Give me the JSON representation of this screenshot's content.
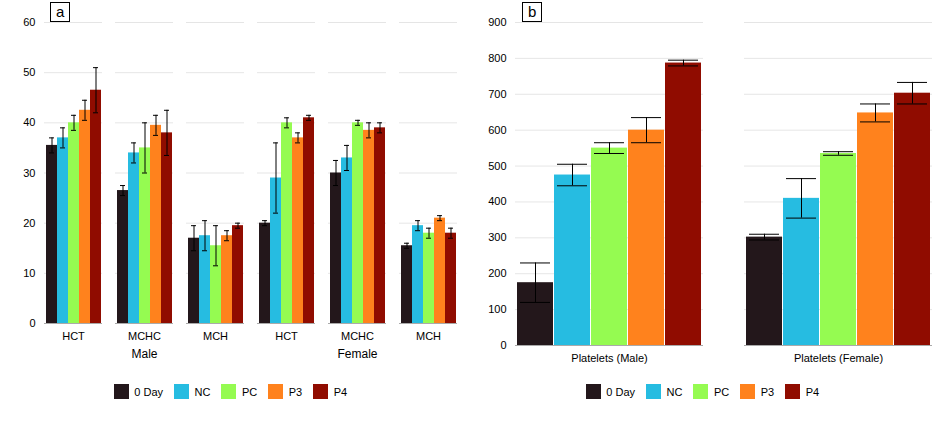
{
  "chart_data": [
    {
      "type": "bar",
      "title": "a",
      "categories": [
        "HCT",
        "MCHC",
        "MCH",
        "HCT",
        "MCHC",
        "MCH"
      ],
      "category_groups": [
        "Male",
        "Male",
        "Male",
        "Female",
        "Female",
        "Female"
      ],
      "series": [
        {
          "name": "0 Day",
          "values": [
            35.5,
            26.5,
            17.0,
            20.0,
            30.0,
            15.5
          ],
          "errors": [
            1.5,
            1.0,
            2.5,
            0.5,
            2.5,
            0.5
          ]
        },
        {
          "name": "NC",
          "values": [
            37.0,
            34.0,
            17.5,
            29.0,
            33.0,
            19.5
          ],
          "errors": [
            2.0,
            2.0,
            3.0,
            7.0,
            2.5,
            1.0
          ]
        },
        {
          "name": "PC",
          "values": [
            40.0,
            35.0,
            15.5,
            40.0,
            40.0,
            18.0
          ],
          "errors": [
            1.5,
            5.0,
            4.0,
            1.0,
            0.5,
            1.0
          ]
        },
        {
          "name": "P3",
          "values": [
            42.5,
            39.5,
            17.5,
            37.0,
            38.5,
            21.0
          ],
          "errors": [
            2.0,
            2.0,
            1.0,
            1.0,
            1.5,
            0.5
          ]
        },
        {
          "name": "P4",
          "values": [
            46.5,
            38.0,
            19.5,
            41.0,
            39.0,
            18.0
          ],
          "errors": [
            4.5,
            4.5,
            0.5,
            0.5,
            1.0,
            1.0
          ]
        }
      ],
      "ylim": [
        0,
        60
      ],
      "yticks": [
        0,
        10,
        20,
        30,
        40,
        50,
        60
      ],
      "grid": true,
      "legend": "bottom"
    },
    {
      "type": "bar",
      "title": "b",
      "categories": [
        "Platelets (Male)",
        "Platelets (Female)"
      ],
      "series": [
        {
          "name": "0 Day",
          "values": [
            175,
            302
          ],
          "errors": [
            55,
            8
          ]
        },
        {
          "name": "NC",
          "values": [
            475,
            410
          ],
          "errors": [
            30,
            55
          ]
        },
        {
          "name": "PC",
          "values": [
            550,
            535
          ],
          "errors": [
            15,
            5
          ]
        },
        {
          "name": "P3",
          "values": [
            600,
            648
          ],
          "errors": [
            35,
            25
          ]
        },
        {
          "name": "P4",
          "values": [
            787,
            703
          ],
          "errors": [
            8,
            30
          ]
        }
      ],
      "ylim": [
        0,
        900
      ],
      "yticks": [
        0,
        100,
        200,
        300,
        400,
        500,
        600,
        700,
        800,
        900
      ],
      "grid": true,
      "legend": "bottom"
    }
  ]
}
